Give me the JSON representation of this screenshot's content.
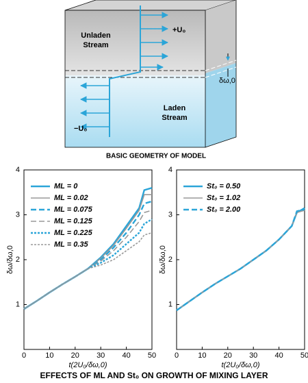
{
  "diagram": {
    "unladen": [
      "Unladen",
      "Stream"
    ],
    "laden": [
      "Laden",
      "Stream"
    ],
    "plus_u": "+U₀",
    "minus_u": "−U₀",
    "thickness": "δω,0",
    "caption": "BASIC GEOMETRY OF MODEL"
  },
  "figure_title": "EFFECTS OF ML AND St₀ ON GROWTH OF MIXING LAYER",
  "chart_data": [
    {
      "type": "line",
      "xlabel": "t(2U₀/δω,0)",
      "ylabel": "δω/δω,0",
      "x": [
        0,
        5,
        10,
        15,
        20,
        25,
        30,
        35,
        40,
        45,
        47,
        50
      ],
      "xlim": [
        0,
        50
      ],
      "ylim": [
        0,
        4
      ],
      "xticks": [
        0,
        10,
        20,
        30,
        40,
        50
      ],
      "yticks": [
        1,
        2,
        3,
        4
      ],
      "legend": "upper left",
      "series": [
        {
          "name": "ML = 0",
          "color": "#2ba5d8",
          "dash": "solid",
          "values": [
            0.9,
            1.08,
            1.27,
            1.45,
            1.62,
            1.8,
            2.05,
            2.35,
            2.75,
            3.15,
            3.55,
            3.6
          ]
        },
        {
          "name": "ML = 0.02",
          "color": "#999999",
          "dash": "solid",
          "values": [
            0.9,
            1.08,
            1.27,
            1.45,
            1.62,
            1.8,
            2.03,
            2.32,
            2.7,
            3.1,
            3.45,
            3.45
          ]
        },
        {
          "name": "ML = 0.075",
          "color": "#2ba5d8",
          "dash": "dashed",
          "values": [
            0.9,
            1.08,
            1.27,
            1.45,
            1.62,
            1.8,
            2.0,
            2.27,
            2.6,
            3.0,
            3.25,
            3.3
          ]
        },
        {
          "name": "ML = 0.125",
          "color": "#999999",
          "dash": "dashed",
          "values": [
            0.9,
            1.08,
            1.27,
            1.45,
            1.62,
            1.8,
            1.97,
            2.2,
            2.5,
            2.85,
            3.05,
            3.1
          ]
        },
        {
          "name": "ML = 0.225",
          "color": "#2ba5d8",
          "dash": "dotted",
          "values": [
            0.9,
            1.08,
            1.27,
            1.45,
            1.62,
            1.8,
            1.93,
            2.1,
            2.35,
            2.6,
            2.8,
            2.9
          ]
        },
        {
          "name": "ML = 0.35",
          "color": "#999999",
          "dash": "dotted",
          "values": [
            0.9,
            1.08,
            1.27,
            1.45,
            1.62,
            1.8,
            1.88,
            2.0,
            2.2,
            2.4,
            2.55,
            2.6
          ]
        }
      ]
    },
    {
      "type": "line",
      "xlabel": "t(2U₀/δω,0)",
      "ylabel": "δω/δω,0",
      "x": [
        0,
        5,
        10,
        15,
        20,
        25,
        30,
        35,
        40,
        45,
        47,
        50
      ],
      "xlim": [
        0,
        50
      ],
      "ylim": [
        0,
        4
      ],
      "xticks": [
        0,
        10,
        20,
        30,
        40,
        50
      ],
      "yticks": [
        1,
        2,
        3,
        4
      ],
      "legend": "upper left",
      "series": [
        {
          "name": "St₀ = 0.50",
          "color": "#2ba5d8",
          "dash": "solid",
          "values": [
            0.87,
            1.07,
            1.27,
            1.46,
            1.63,
            1.8,
            2.0,
            2.2,
            2.45,
            2.75,
            3.05,
            3.15
          ]
        },
        {
          "name": "St₀ = 1.02",
          "color": "#999999",
          "dash": "solid",
          "values": [
            0.87,
            1.07,
            1.27,
            1.46,
            1.63,
            1.8,
            2.0,
            2.2,
            2.45,
            2.75,
            3.05,
            3.1
          ]
        },
        {
          "name": "St₀ = 2.00",
          "color": "#2ba5d8",
          "dash": "dashed",
          "values": [
            0.87,
            1.07,
            1.27,
            1.46,
            1.63,
            1.8,
            2.0,
            2.2,
            2.45,
            2.75,
            3.08,
            3.12
          ]
        }
      ]
    }
  ]
}
